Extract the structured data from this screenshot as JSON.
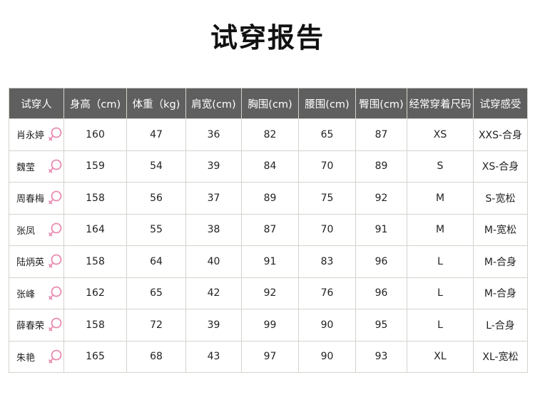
{
  "title": "试穿报告",
  "headers": [
    "试穿人",
    "身高（cm)",
    "体重（kg)",
    "肩宽(cm)",
    "胸围(cm)",
    "腰围(cm)",
    "臀围(cm)",
    "经常穿着尺码",
    "试穿感受"
  ],
  "female_icon_color": "#e88bb0",
  "rows": [
    [
      "肖永婷",
      "160",
      "47",
      "36",
      "82",
      "65",
      "87",
      "XS",
      "XXS-合身"
    ],
    [
      "魏莹",
      "159",
      "54",
      "39",
      "84",
      "70",
      "89",
      "S",
      "XS-合身"
    ],
    [
      "周春梅",
      "158",
      "56",
      "37",
      "89",
      "75",
      "92",
      "M",
      "S-宽松"
    ],
    [
      "张凤",
      "164",
      "55",
      "38",
      "87",
      "70",
      "91",
      "M",
      "M-宽松"
    ],
    [
      "陆炳英",
      "158",
      "64",
      "40",
      "91",
      "83",
      "96",
      "L",
      "M-合身"
    ],
    [
      "张峰",
      "162",
      "65",
      "42",
      "92",
      "76",
      "96",
      "L",
      "M-合身"
    ],
    [
      "薛春荣",
      "158",
      "72",
      "39",
      "99",
      "90",
      "95",
      "L",
      "L-合身"
    ],
    [
      "朱艳",
      "165",
      "68",
      "43",
      "97",
      "90",
      "93",
      "XL",
      "XL-宽松"
    ]
  ]
}
